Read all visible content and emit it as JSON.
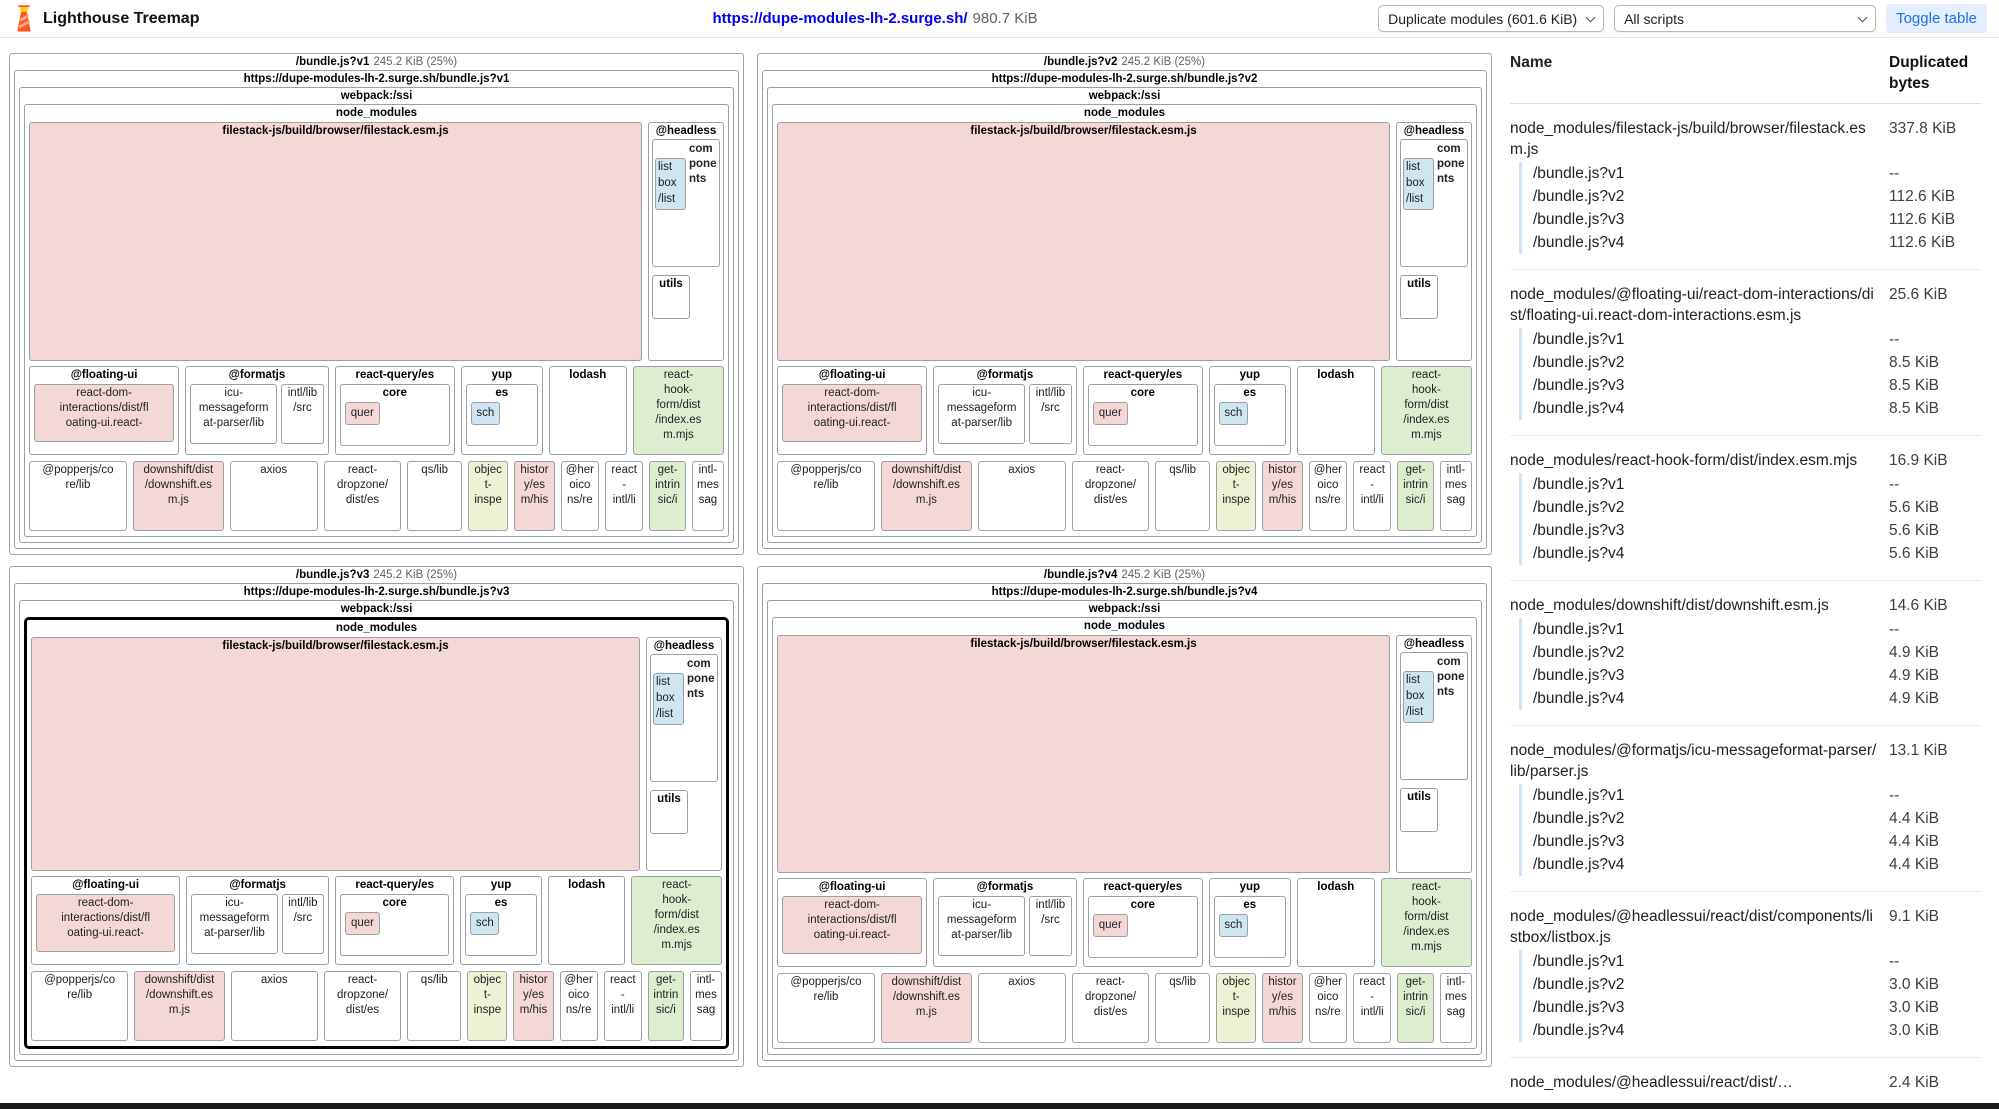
{
  "header": {
    "app_title": "Lighthouse Treemap",
    "site_url": "https://dupe-modules-lh-2.surge.sh/",
    "total_size": "980.7 KiB",
    "view_mode": "Duplicate modules (601.6 KiB)",
    "script_filter": "All scripts",
    "toggle_label": "Toggle table"
  },
  "panels": [
    {
      "name": "/bundle.js?v1",
      "size": "245.2 KiB (25%)",
      "url": "https://dupe-modules-lh-2.surge.sh/bundle.js?v1",
      "highlighted": false
    },
    {
      "name": "/bundle.js?v2",
      "size": "245.2 KiB (25%)",
      "url": "https://dupe-modules-lh-2.surge.sh/bundle.js?v2",
      "highlighted": false
    },
    {
      "name": "/bundle.js?v3",
      "size": "245.2 KiB (25%)",
      "url": "https://dupe-modules-lh-2.surge.sh/bundle.js?v3",
      "highlighted": true
    },
    {
      "name": "/bundle.js?v4",
      "size": "245.2 KiB (25%)",
      "url": "https://dupe-modules-lh-2.surge.sh/bundle.js?v4",
      "highlighted": false
    }
  ],
  "modules": {
    "webpack": "webpack:/ssi",
    "node_modules": "node_modules",
    "filestack": "filestack-js/build/browser/filestack.esm.js",
    "headlessui": "@headless",
    "components": "components",
    "listbox": "list\nbox\n/list",
    "utils": "utils",
    "floating_ui": "@floating-ui",
    "react_dom_interactions": "react-dom-\ninteractions/dist/fl\noating-ui.react-",
    "formatjs": "@formatjs",
    "icu": "icu-\nmessageform\nat-parser/lib",
    "intl_lib": "intl/lib\n/src",
    "react_query": "react-query/es",
    "core": "core",
    "quer": "quer",
    "yup": "yup",
    "es": "es",
    "sch": "sch",
    "lodash": "lodash",
    "react_hook_form": "react-\nhook-\nform/dist\n/index.es\nm.mjs",
    "popperjs": "@popperjs/co\nre/lib",
    "downshift": "downshift/dist\n/downshift.es\nm.js",
    "axios": "axios",
    "react_dropzone": "react-\ndropzone/\ndist/es",
    "qs": "qs/lib",
    "object_inspect": "objec\nt-\ninspe",
    "history": "histor\ny/es\nm/his",
    "heroicons": "@her\noico\nns/re",
    "react_intl": "react\n-\nintl/li",
    "get_intrinsic": "get-\nintrin\nsic/i",
    "intl_messageformat": "intl-\nmes\nsag"
  },
  "table": {
    "name_header": "Name",
    "bytes_header": "Duplicated bytes",
    "bundles": [
      "/bundle.js?v1",
      "/bundle.js?v2",
      "/bundle.js?v3",
      "/bundle.js?v4"
    ],
    "groups": [
      {
        "name": "node_modules/filestack-js/build/browser/filestack.esm.js",
        "bytes": "337.8 KiB",
        "values": [
          "--",
          "112.6 KiB",
          "112.6 KiB",
          "112.6 KiB"
        ]
      },
      {
        "name": "node_modules/@floating-ui/react-dom-interactions/dist/floating-ui.react-dom-interactions.esm.js",
        "bytes": "25.6 KiB",
        "values": [
          "--",
          "8.5 KiB",
          "8.5 KiB",
          "8.5 KiB"
        ]
      },
      {
        "name": "node_modules/react-hook-form/dist/index.esm.mjs",
        "bytes": "16.9 KiB",
        "values": [
          "--",
          "5.6 KiB",
          "5.6 KiB",
          "5.6 KiB"
        ]
      },
      {
        "name": "node_modules/downshift/dist/downshift.esm.js",
        "bytes": "14.6 KiB",
        "values": [
          "--",
          "4.9 KiB",
          "4.9 KiB",
          "4.9 KiB"
        ]
      },
      {
        "name": "node_modules/@formatjs/icu-messageformat-parser/lib/parser.js",
        "bytes": "13.1 KiB",
        "values": [
          "--",
          "4.4 KiB",
          "4.4 KiB",
          "4.4 KiB"
        ]
      },
      {
        "name": "node_modules/@headlessui/react/dist/components/listbox/listbox.js",
        "bytes": "9.1 KiB",
        "values": [
          "--",
          "3.0 KiB",
          "3.0 KiB",
          "3.0 KiB"
        ]
      },
      {
        "name": "node_modules/@headlessui/react/dist/…",
        "bytes": "2.4 KiB",
        "values": []
      }
    ]
  }
}
